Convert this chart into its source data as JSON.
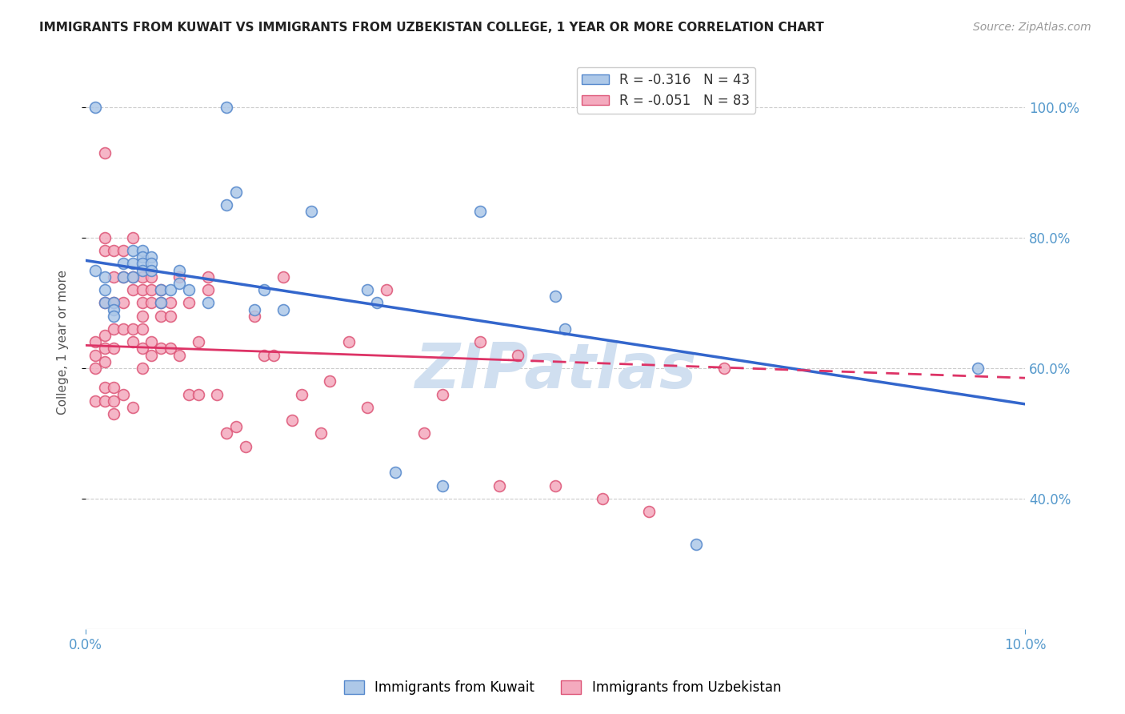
{
  "title": "IMMIGRANTS FROM KUWAIT VS IMMIGRANTS FROM UZBEKISTAN COLLEGE, 1 YEAR OR MORE CORRELATION CHART",
  "source": "Source: ZipAtlas.com",
  "ylabel": "College, 1 year or more",
  "right_yticks": [
    0.4,
    0.6,
    0.8,
    1.0
  ],
  "right_yticklabels": [
    "40.0%",
    "60.0%",
    "80.0%",
    "100.0%"
  ],
  "xlim": [
    0.0,
    0.1
  ],
  "ylim": [
    0.2,
    1.08
  ],
  "kuwait_R": -0.316,
  "kuwait_N": 43,
  "uzbekistan_R": -0.051,
  "uzbekistan_N": 83,
  "scatter_size": 100,
  "kuwait_color": "#adc8e8",
  "uzbekistan_color": "#f4aabe",
  "kuwait_edge_color": "#5588cc",
  "uzbekistan_edge_color": "#dd5577",
  "line_kuwait_color": "#3366cc",
  "line_uzbekistan_color": "#dd3366",
  "background_color": "#ffffff",
  "grid_color": "#cccccc",
  "title_color": "#222222",
  "axis_color": "#5599cc",
  "watermark_text": "ZIPatlas",
  "watermark_color": "#d0dff0",
  "kuwait_x": [
    0.001,
    0.015,
    0.016,
    0.001,
    0.002,
    0.002,
    0.002,
    0.003,
    0.003,
    0.003,
    0.004,
    0.004,
    0.005,
    0.005,
    0.005,
    0.006,
    0.006,
    0.006,
    0.006,
    0.007,
    0.007,
    0.007,
    0.008,
    0.008,
    0.009,
    0.01,
    0.01,
    0.011,
    0.013,
    0.015,
    0.018,
    0.019,
    0.021,
    0.024,
    0.03,
    0.031,
    0.033,
    0.038,
    0.042,
    0.05,
    0.051,
    0.065,
    0.095
  ],
  "kuwait_y": [
    1.0,
    1.0,
    0.87,
    0.75,
    0.74,
    0.72,
    0.7,
    0.7,
    0.69,
    0.68,
    0.76,
    0.74,
    0.78,
    0.76,
    0.74,
    0.78,
    0.77,
    0.76,
    0.75,
    0.77,
    0.76,
    0.75,
    0.72,
    0.7,
    0.72,
    0.75,
    0.73,
    0.72,
    0.7,
    0.85,
    0.69,
    0.72,
    0.69,
    0.84,
    0.72,
    0.7,
    0.44,
    0.42,
    0.84,
    0.71,
    0.66,
    0.33,
    0.6
  ],
  "uzbekistan_x": [
    0.001,
    0.001,
    0.001,
    0.001,
    0.002,
    0.002,
    0.002,
    0.002,
    0.002,
    0.002,
    0.002,
    0.002,
    0.002,
    0.003,
    0.003,
    0.003,
    0.003,
    0.003,
    0.003,
    0.003,
    0.003,
    0.004,
    0.004,
    0.004,
    0.004,
    0.004,
    0.005,
    0.005,
    0.005,
    0.005,
    0.005,
    0.005,
    0.006,
    0.006,
    0.006,
    0.006,
    0.006,
    0.006,
    0.006,
    0.007,
    0.007,
    0.007,
    0.007,
    0.007,
    0.008,
    0.008,
    0.008,
    0.008,
    0.009,
    0.009,
    0.009,
    0.01,
    0.01,
    0.011,
    0.011,
    0.012,
    0.012,
    0.013,
    0.013,
    0.014,
    0.015,
    0.016,
    0.017,
    0.018,
    0.019,
    0.02,
    0.021,
    0.022,
    0.023,
    0.025,
    0.026,
    0.028,
    0.03,
    0.032,
    0.036,
    0.038,
    0.042,
    0.044,
    0.046,
    0.05,
    0.055,
    0.06,
    0.068
  ],
  "uzbekistan_y": [
    0.64,
    0.62,
    0.6,
    0.55,
    0.93,
    0.8,
    0.78,
    0.7,
    0.65,
    0.63,
    0.61,
    0.57,
    0.55,
    0.78,
    0.74,
    0.7,
    0.66,
    0.63,
    0.57,
    0.55,
    0.53,
    0.78,
    0.74,
    0.7,
    0.66,
    0.56,
    0.8,
    0.74,
    0.72,
    0.66,
    0.64,
    0.54,
    0.74,
    0.72,
    0.7,
    0.68,
    0.66,
    0.63,
    0.6,
    0.74,
    0.72,
    0.7,
    0.64,
    0.62,
    0.72,
    0.7,
    0.68,
    0.63,
    0.7,
    0.68,
    0.63,
    0.74,
    0.62,
    0.7,
    0.56,
    0.64,
    0.56,
    0.74,
    0.72,
    0.56,
    0.5,
    0.51,
    0.48,
    0.68,
    0.62,
    0.62,
    0.74,
    0.52,
    0.56,
    0.5,
    0.58,
    0.64,
    0.54,
    0.72,
    0.5,
    0.56,
    0.64,
    0.42,
    0.62,
    0.42,
    0.4,
    0.38,
    0.6
  ],
  "line_kuwait_x0": 0.0,
  "line_kuwait_y0": 0.765,
  "line_kuwait_x1": 0.1,
  "line_kuwait_y1": 0.545,
  "line_uzbekistan_x0": 0.0,
  "line_uzbekistan_y0": 0.635,
  "line_uzbekistan_x1": 0.1,
  "line_uzbekistan_y1": 0.585
}
